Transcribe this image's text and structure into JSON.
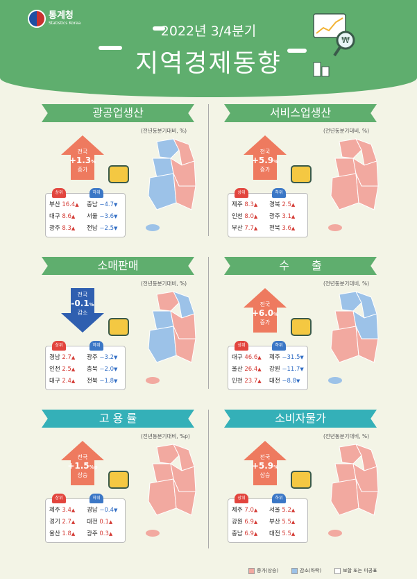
{
  "header": {
    "org_ko": "통계청",
    "org_en": "Statistics Korea",
    "subtitle": "2022년 3/4분기",
    "title": "지역경제동향"
  },
  "colors": {
    "increase": "#f2a9a0",
    "decrease": "#9cc2e8",
    "neutral": "#ffffff",
    "header_green": "#5fae6e",
    "banner_teal": "#34b0b8"
  },
  "unit_note_default": "(전년동분기대비, %)",
  "unit_note_employment": "(전년동분기대비, %p)",
  "top_label": "상위",
  "bottom_label": "하위",
  "national_label": "전국",
  "panels": [
    {
      "name": "광공업생산",
      "national_value": "+1.3",
      "unit": "%",
      "direction": "증가",
      "icon": "excavator-icon",
      "top": [
        [
          "부산",
          "16.4"
        ],
        [
          "대구",
          "8.6"
        ],
        [
          "광주",
          "8.3"
        ]
      ],
      "bottom": [
        [
          "충남",
          "−4.7"
        ],
        [
          "서울",
          "−3.6"
        ],
        [
          "전남",
          "−2.5"
        ]
      ]
    },
    {
      "name": "서비스업생산",
      "national_value": "+5.9",
      "unit": "%",
      "direction": "증가",
      "icon": "headset-agent-icon",
      "top": [
        [
          "제주",
          "8.3"
        ],
        [
          "인천",
          "8.0"
        ],
        [
          "부산",
          "7.7"
        ]
      ],
      "bottom": [
        [
          "경북",
          "2.5"
        ],
        [
          "광주",
          "3.1"
        ],
        [
          "전북",
          "3.6"
        ]
      ]
    },
    {
      "name": "소매판매",
      "national_value": "-0.1",
      "unit": "%",
      "direction": "감소",
      "icon": "shopping-bag-icon",
      "top": [
        [
          "경남",
          "2.7"
        ],
        [
          "인천",
          "2.5"
        ],
        [
          "대구",
          "2.4"
        ]
      ],
      "bottom": [
        [
          "광주",
          "−3.2"
        ],
        [
          "충북",
          "−2.0"
        ],
        [
          "전북",
          "−1.8"
        ]
      ]
    },
    {
      "name": "수　　출",
      "national_value": "+6.0",
      "unit": "%",
      "direction": "증가",
      "icon": "cargo-ship-icon",
      "top": [
        [
          "대구",
          "46.6"
        ],
        [
          "울산",
          "26.4"
        ],
        [
          "인천",
          "23.7"
        ]
      ],
      "bottom": [
        [
          "제주",
          "−31.5"
        ],
        [
          "강원",
          "−11.7"
        ],
        [
          "대전",
          "−8.8"
        ]
      ]
    },
    {
      "name": "고 용 률",
      "national_value": "+1.5",
      "unit": "%p",
      "direction": "상승",
      "icon": "clipboard-clock-icon",
      "top": [
        [
          "제주",
          "3.4"
        ],
        [
          "경기",
          "2.7"
        ],
        [
          "울산",
          "1.8"
        ]
      ],
      "bottom": [
        [
          "경남",
          "−0.4"
        ],
        [
          "대전",
          "0.1"
        ],
        [
          "광주",
          "0.3"
        ]
      ]
    },
    {
      "name": "소비자물가",
      "national_value": "+5.9",
      "unit": "%",
      "direction": "상승",
      "icon": "money-stack-icon",
      "top": [
        [
          "제주",
          "7.0"
        ],
        [
          "강원",
          "6.9"
        ],
        [
          "충남",
          "6.9"
        ]
      ],
      "bottom": [
        [
          "서울",
          "5.2"
        ],
        [
          "부산",
          "5.5"
        ],
        [
          "대전",
          "5.5"
        ]
      ]
    }
  ],
  "legend": {
    "increase": "증가(상승)",
    "decrease": "감소(하락)",
    "neutral": "보합 또는 미공표"
  }
}
